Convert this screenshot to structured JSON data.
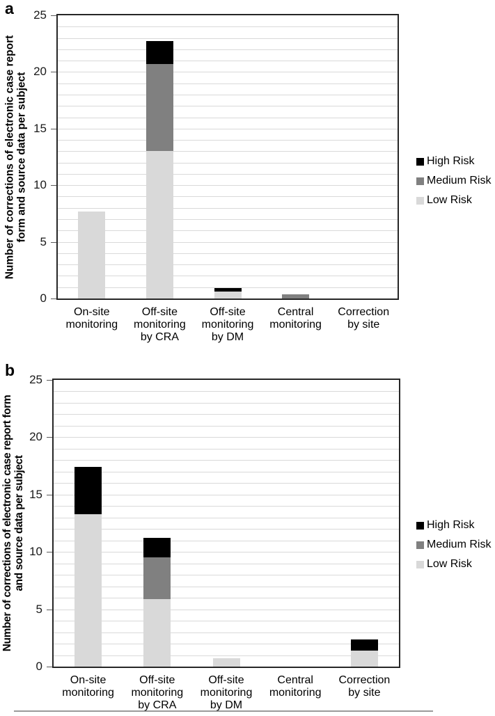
{
  "figure": {
    "panels": [
      {
        "id": "a",
        "label": "a",
        "y_title_line1": "Number of corrections of electronic case report",
        "y_title_line2": "form and source data per subject"
      },
      {
        "id": "b",
        "label": "b",
        "y_title_line1": "Number of corrections of electronic case report form",
        "y_title_line2": "and source data per subject"
      }
    ]
  },
  "colors": {
    "low_risk": "#d9d9d9",
    "medium_risk": "#808080",
    "high_risk": "#000000",
    "gridline": "#d9d9d9",
    "axis_border": "#262626",
    "tick": "#595959",
    "bottom_rule": "#9a9a9a"
  },
  "chart_data": [
    {
      "type": "bar",
      "panel": "a",
      "stacked": true,
      "ylabel": "Number of corrections of electronic case report form and source data per subject",
      "ylim": [
        0,
        25
      ],
      "yticks": [
        0,
        5,
        10,
        15,
        20,
        25
      ],
      "gridline_step": 1,
      "grid": true,
      "legend_position": "right",
      "categories": [
        "On-site monitoring",
        "Off-site monitoring by CRA",
        "Off-site monitoring by DM",
        "Central monitoring",
        "Correction by site"
      ],
      "category_label_lines": [
        [
          "On-site",
          "monitoring"
        ],
        [
          "Off-site",
          "monitoring",
          "by CRA"
        ],
        [
          "Off-site",
          "monitoring",
          "by DM"
        ],
        [
          "Central",
          "monitoring"
        ],
        [
          "Correction",
          "by site"
        ]
      ],
      "series": [
        {
          "name": "Low Risk",
          "color": "#d9d9d9",
          "values": [
            7.7,
            13.0,
            0.6,
            0,
            0
          ]
        },
        {
          "name": "Medium Risk",
          "color": "#808080",
          "values": [
            0,
            7.7,
            0,
            0.4,
            0
          ]
        },
        {
          "name": "High Risk",
          "color": "#000000",
          "values": [
            0,
            2.0,
            0.3,
            0,
            0
          ]
        }
      ],
      "legend": [
        {
          "label": "High Risk",
          "color": "#000000"
        },
        {
          "label": "Medium Risk",
          "color": "#808080"
        },
        {
          "label": "Low Risk",
          "color": "#d9d9d9"
        }
      ]
    },
    {
      "type": "bar",
      "panel": "b",
      "stacked": true,
      "ylabel": "Number of corrections of electronic case report form and source data per subject",
      "ylim": [
        0,
        25
      ],
      "yticks": [
        0,
        5,
        10,
        15,
        20,
        25
      ],
      "gridline_step": 1,
      "grid": true,
      "legend_position": "right",
      "categories": [
        "On-site monitoring",
        "Off-site monitoring by CRA",
        "Off-site monitoring by DM",
        "Central monitoring",
        "Correction by site"
      ],
      "category_label_lines": [
        [
          "On-site",
          "monitoring"
        ],
        [
          "Off-site",
          "monitoring",
          "by CRA"
        ],
        [
          "Off-site",
          "monitoring",
          "by DM"
        ],
        [
          "Central",
          "monitoring"
        ],
        [
          "Correction",
          "by site"
        ]
      ],
      "series": [
        {
          "name": "Low Risk",
          "color": "#d9d9d9",
          "values": [
            13.3,
            5.9,
            0.75,
            0,
            1.4
          ]
        },
        {
          "name": "Medium Risk",
          "color": "#808080",
          "values": [
            0,
            3.6,
            0,
            0,
            0
          ]
        },
        {
          "name": "High Risk",
          "color": "#000000",
          "values": [
            4.1,
            1.7,
            0,
            0,
            0.95
          ]
        }
      ],
      "legend": [
        {
          "label": "High Risk",
          "color": "#000000"
        },
        {
          "label": "Medium Risk",
          "color": "#808080"
        },
        {
          "label": "Low Risk",
          "color": "#d9d9d9"
        }
      ]
    }
  ]
}
